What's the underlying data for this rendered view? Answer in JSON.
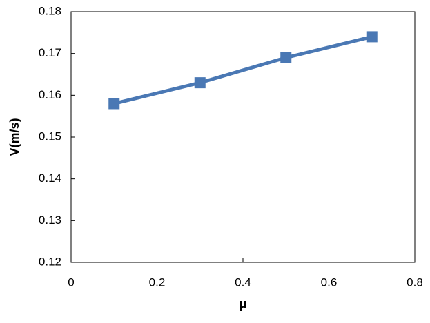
{
  "chart_data": {
    "type": "line",
    "x_label": "μ",
    "y_label": "V(m/s)",
    "x": [
      0.1,
      0.3,
      0.5,
      0.7
    ],
    "series": [
      {
        "name": "V",
        "color": "#4a78b4",
        "values": [
          0.158,
          0.163,
          0.169,
          0.174
        ]
      }
    ],
    "xlim": [
      0,
      0.8
    ],
    "xticks": [
      0,
      0.2,
      0.4,
      0.6,
      0.8
    ],
    "ylim": [
      0.12,
      0.18
    ],
    "yticks": [
      0.12,
      0.13,
      0.14,
      0.15,
      0.16,
      0.17,
      0.18
    ],
    "grid": false,
    "legend": false
  }
}
